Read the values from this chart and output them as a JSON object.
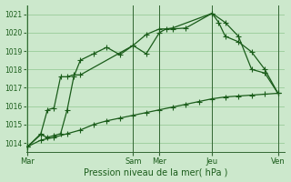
{
  "background_color": "#cce8cc",
  "plot_bg_color": "#cce8cc",
  "grid_color": "#99cc99",
  "line_color": "#1a5c1a",
  "ylim": [
    1013.5,
    1021.5
  ],
  "yticks": [
    1014,
    1015,
    1016,
    1017,
    1018,
    1019,
    1020,
    1021
  ],
  "xlabel": "Pression niveau de la mer( hPa )",
  "vline_positions": [
    0.0,
    4.0,
    5.0,
    7.0,
    9.5
  ],
  "xtick_positions": [
    0.0,
    4.0,
    5.0,
    7.0,
    9.5
  ],
  "xtick_labels": [
    "Mar",
    "Sam",
    "Mer",
    "Jeu",
    "Ven"
  ],
  "xlim": [
    -0.05,
    9.75
  ],
  "series1_x": [
    0.0,
    0.5,
    0.75,
    1.0,
    1.25,
    1.5,
    1.75,
    2.0,
    4.0,
    4.5,
    5.0,
    5.25,
    5.5,
    7.0,
    7.25,
    7.5,
    8.0,
    8.5,
    9.0,
    9.5
  ],
  "series1_y": [
    1013.8,
    1014.5,
    1015.8,
    1015.9,
    1017.6,
    1017.6,
    1017.7,
    1017.7,
    1019.3,
    1018.85,
    1020.0,
    1020.2,
    1020.25,
    1021.05,
    1020.55,
    1019.8,
    1019.5,
    1018.95,
    1018.0,
    1016.7
  ],
  "series2_x": [
    0.0,
    0.5,
    0.75,
    1.0,
    1.25,
    1.5,
    1.75,
    2.0,
    2.5,
    3.0,
    3.5,
    4.0,
    4.5,
    5.0,
    5.5,
    6.0,
    7.0,
    7.5,
    8.0,
    8.5,
    9.0,
    9.5
  ],
  "series2_y": [
    1013.8,
    1014.45,
    1014.3,
    1014.4,
    1014.5,
    1015.8,
    1017.6,
    1018.5,
    1018.85,
    1019.2,
    1018.8,
    1019.3,
    1019.9,
    1020.2,
    1020.2,
    1020.25,
    1021.05,
    1020.55,
    1019.8,
    1018.0,
    1017.8,
    1016.7
  ],
  "series3_x": [
    0.0,
    0.5,
    1.0,
    1.5,
    2.0,
    2.5,
    3.0,
    3.5,
    4.0,
    4.5,
    5.0,
    5.5,
    6.0,
    6.5,
    7.0,
    7.5,
    8.0,
    8.5,
    9.0,
    9.5
  ],
  "series3_y": [
    1013.8,
    1014.15,
    1014.3,
    1014.5,
    1014.7,
    1015.0,
    1015.2,
    1015.35,
    1015.5,
    1015.65,
    1015.8,
    1015.95,
    1016.1,
    1016.25,
    1016.4,
    1016.5,
    1016.55,
    1016.6,
    1016.65,
    1016.7
  ]
}
